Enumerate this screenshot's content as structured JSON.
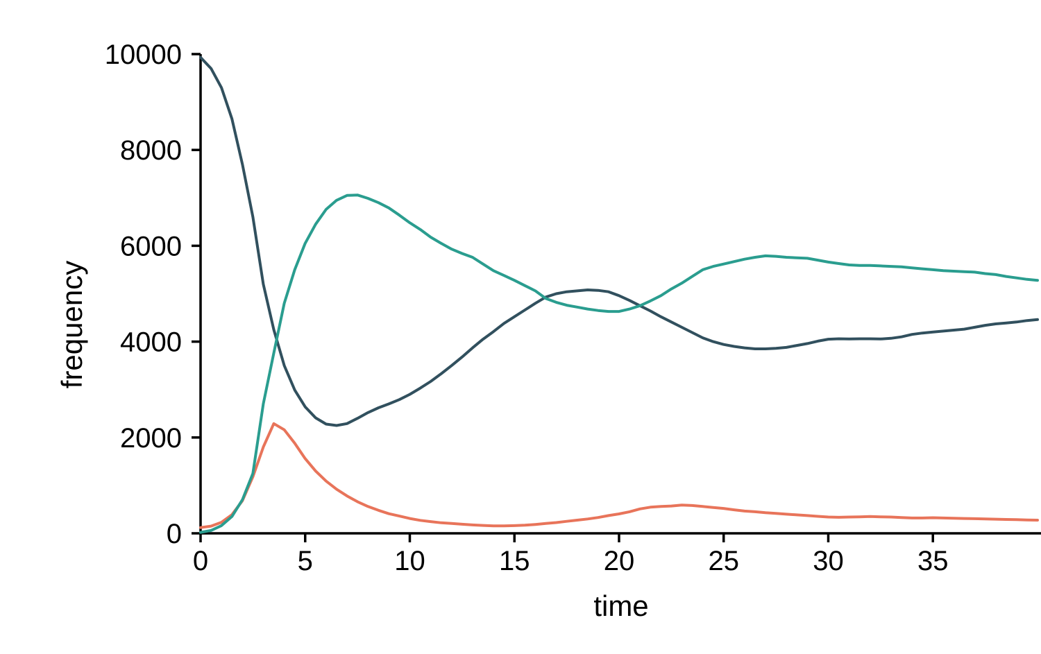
{
  "chart_data": {
    "type": "line",
    "title": "",
    "xlabel": "time",
    "ylabel": "frequency",
    "xlim": [
      0,
      40.2
    ],
    "ylim": [
      0,
      10000
    ],
    "x_ticks": [
      0,
      5,
      10,
      15,
      20,
      25,
      30,
      35
    ],
    "y_ticks": [
      0,
      2000,
      4000,
      6000,
      8000,
      10000
    ],
    "grid": false,
    "legend": "none",
    "axis_color": "#000000",
    "x": [
      0,
      0.5,
      1,
      1.5,
      2,
      2.5,
      3,
      3.5,
      4,
      4.5,
      5,
      5.5,
      6,
      6.5,
      7,
      7.5,
      8,
      8.5,
      9,
      9.5,
      10,
      10.5,
      11,
      11.5,
      12,
      12.5,
      13,
      13.5,
      14,
      14.5,
      15,
      15.5,
      16,
      16.5,
      17,
      17.5,
      18,
      18.5,
      19,
      19.5,
      20,
      20.5,
      21,
      21.5,
      22,
      22.5,
      23,
      23.5,
      24,
      24.5,
      25,
      25.5,
      26,
      26.5,
      27,
      27.5,
      28,
      28.5,
      29,
      29.5,
      30,
      30.5,
      31,
      31.5,
      32,
      32.5,
      33,
      33.5,
      34,
      34.5,
      35,
      35.5,
      36,
      36.5,
      37,
      37.5,
      38,
      38.5,
      39,
      39.5,
      40
    ],
    "series": [
      {
        "name": "dark-slate",
        "color": "#31505e",
        "values": [
          9930,
          9700,
          9300,
          8650,
          7700,
          6600,
          5200,
          4250,
          3500,
          2990,
          2640,
          2410,
          2280,
          2250,
          2290,
          2400,
          2520,
          2620,
          2700,
          2790,
          2900,
          3030,
          3170,
          3330,
          3500,
          3680,
          3870,
          4050,
          4210,
          4380,
          4520,
          4660,
          4800,
          4930,
          5000,
          5040,
          5060,
          5080,
          5070,
          5040,
          4960,
          4860,
          4750,
          4640,
          4520,
          4410,
          4300,
          4190,
          4080,
          4000,
          3940,
          3900,
          3870,
          3850,
          3850,
          3860,
          3880,
          3920,
          3960,
          4010,
          4050,
          4060,
          4055,
          4060,
          4060,
          4055,
          4070,
          4100,
          4150,
          4180,
          4200,
          4220,
          4240,
          4260,
          4300,
          4340,
          4370,
          4390,
          4410,
          4440,
          4460
        ]
      },
      {
        "name": "orange",
        "color": "#e8745a",
        "values": [
          120,
          150,
          230,
          390,
          680,
          1180,
          1800,
          2290,
          2160,
          1880,
          1560,
          1300,
          1090,
          920,
          780,
          660,
          560,
          480,
          410,
          360,
          310,
          270,
          245,
          220,
          205,
          190,
          175,
          165,
          155,
          155,
          160,
          170,
          185,
          205,
          225,
          250,
          275,
          300,
          330,
          370,
          405,
          450,
          510,
          545,
          560,
          570,
          590,
          580,
          560,
          540,
          520,
          490,
          465,
          450,
          430,
          415,
          400,
          385,
          370,
          355,
          340,
          335,
          340,
          345,
          350,
          345,
          340,
          330,
          320,
          320,
          325,
          320,
          315,
          310,
          305,
          300,
          295,
          290,
          285,
          280,
          275
        ]
      },
      {
        "name": "teal",
        "color": "#2a9d8f",
        "values": [
          20,
          60,
          160,
          350,
          700,
          1250,
          2700,
          3760,
          4800,
          5500,
          6050,
          6450,
          6760,
          6950,
          7050,
          7060,
          6990,
          6900,
          6790,
          6640,
          6480,
          6340,
          6180,
          6050,
          5930,
          5840,
          5760,
          5620,
          5480,
          5380,
          5280,
          5170,
          5060,
          4900,
          4820,
          4760,
          4720,
          4680,
          4650,
          4630,
          4630,
          4680,
          4750,
          4850,
          4960,
          5100,
          5220,
          5360,
          5500,
          5570,
          5620,
          5670,
          5720,
          5760,
          5790,
          5780,
          5760,
          5750,
          5740,
          5700,
          5660,
          5630,
          5600,
          5590,
          5590,
          5580,
          5570,
          5560,
          5540,
          5520,
          5500,
          5480,
          5470,
          5460,
          5450,
          5420,
          5400,
          5360,
          5330,
          5300,
          5280
        ]
      }
    ]
  }
}
